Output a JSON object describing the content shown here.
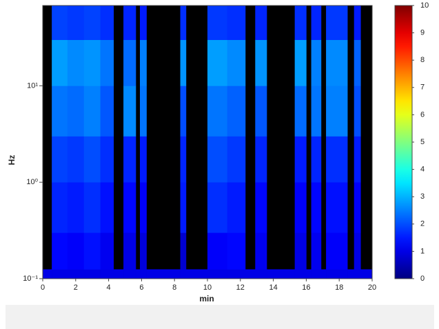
{
  "chart_data": {
    "type": "heatmap",
    "x_label": "min",
    "y_label": "Hz",
    "xbins": [
      0,
      0.55,
      1.5,
      2.5,
      3.5,
      4.3,
      4.9,
      5.65,
      5.9,
      6.3,
      8.35,
      8.7,
      10,
      11.2,
      12.3,
      12.9,
      13.6,
      15.3,
      16,
      16.3,
      16.9,
      17.2,
      18.5,
      18.9,
      19.3,
      20
    ],
    "ybins": [
      0.1,
      0.125,
      0.3,
      1,
      3,
      10,
      30,
      68
    ],
    "values": [
      [
        1,
        1,
        1,
        1,
        1,
        1,
        1,
        1,
        1,
        1,
        1,
        1,
        1,
        1,
        1,
        1,
        1,
        1,
        1,
        1,
        1,
        1,
        1,
        1,
        1
      ],
      [
        null,
        1.3,
        1.2,
        1.4,
        1.1,
        null,
        1.0,
        null,
        0.9,
        null,
        0.8,
        null,
        1.2,
        1.3,
        null,
        1.1,
        null,
        1.0,
        null,
        1.1,
        null,
        1.2,
        null,
        1.0,
        null
      ],
      [
        null,
        1.6,
        1.5,
        1.7,
        1.4,
        null,
        1.3,
        null,
        1.2,
        null,
        1.5,
        null,
        1.7,
        1.5,
        null,
        1.3,
        null,
        1.2,
        null,
        1.3,
        null,
        1.4,
        null,
        1.2,
        null
      ],
      [
        null,
        1.9,
        1.8,
        2.0,
        1.7,
        null,
        1.6,
        null,
        1.5,
        null,
        1.6,
        null,
        2.0,
        1.8,
        null,
        1.6,
        null,
        1.5,
        null,
        1.6,
        null,
        1.7,
        null,
        1.5,
        null
      ],
      [
        null,
        2.4,
        2.3,
        2.5,
        2.1,
        null,
        2.6,
        null,
        2.4,
        null,
        2.0,
        null,
        2.4,
        2.2,
        null,
        2.1,
        null,
        2.3,
        null,
        2.4,
        null,
        2.5,
        null,
        2.0,
        null
      ],
      [
        null,
        2.8,
        2.6,
        2.7,
        2.4,
        null,
        2.3,
        null,
        2.5,
        null,
        2.7,
        null,
        2.8,
        2.6,
        null,
        2.7,
        null,
        2.8,
        null,
        2.5,
        null,
        2.6,
        null,
        2.2,
        null
      ],
      [
        null,
        1.9,
        1.8,
        1.9,
        1.7,
        null,
        1.6,
        null,
        1.5,
        null,
        1.7,
        null,
        1.8,
        1.7,
        null,
        1.6,
        null,
        1.7,
        null,
        1.6,
        null,
        1.8,
        null,
        1.5,
        null
      ]
    ],
    "xlim": [
      0,
      20
    ],
    "xticks": [
      0,
      2,
      4,
      6,
      8,
      10,
      12,
      14,
      16,
      18,
      20
    ],
    "ylim": [
      0.1,
      68
    ],
    "y_log": true,
    "yticks": [
      {
        "value": 0.1,
        "label": "10⁻¹"
      },
      {
        "value": 1,
        "label": "10⁰"
      },
      {
        "value": 10,
        "label": "10¹"
      }
    ],
    "colormap": "jet",
    "missing_color": "#000000",
    "clim": [
      0,
      10
    ],
    "cticks": [
      0,
      1,
      2,
      3,
      4,
      5,
      6,
      7,
      8,
      9,
      10
    ]
  }
}
